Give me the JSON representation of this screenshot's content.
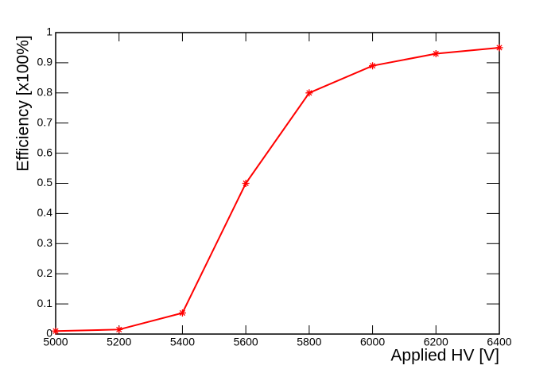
{
  "chart_data": {
    "type": "line",
    "xlabel": "Applied HV [V]",
    "ylabel": "Efficiency [x100%]",
    "x": [
      5000,
      5200,
      5400,
      5600,
      5800,
      6000,
      6200,
      6400
    ],
    "series": [
      {
        "name": "Efficiency",
        "color": "#ff0000",
        "values": [
          0.01,
          0.015,
          0.07,
          0.5,
          0.8,
          0.89,
          0.93,
          0.95
        ]
      }
    ],
    "xlim": [
      5000,
      6400
    ],
    "xticks": [
      5000,
      5200,
      5400,
      5600,
      5800,
      6000,
      6200,
      6400
    ],
    "ylim": [
      0,
      1
    ],
    "yticks": [
      0,
      0.1,
      0.2,
      0.3,
      0.4,
      0.5,
      0.6,
      0.7,
      0.8,
      0.9,
      1
    ],
    "grid": false
  }
}
